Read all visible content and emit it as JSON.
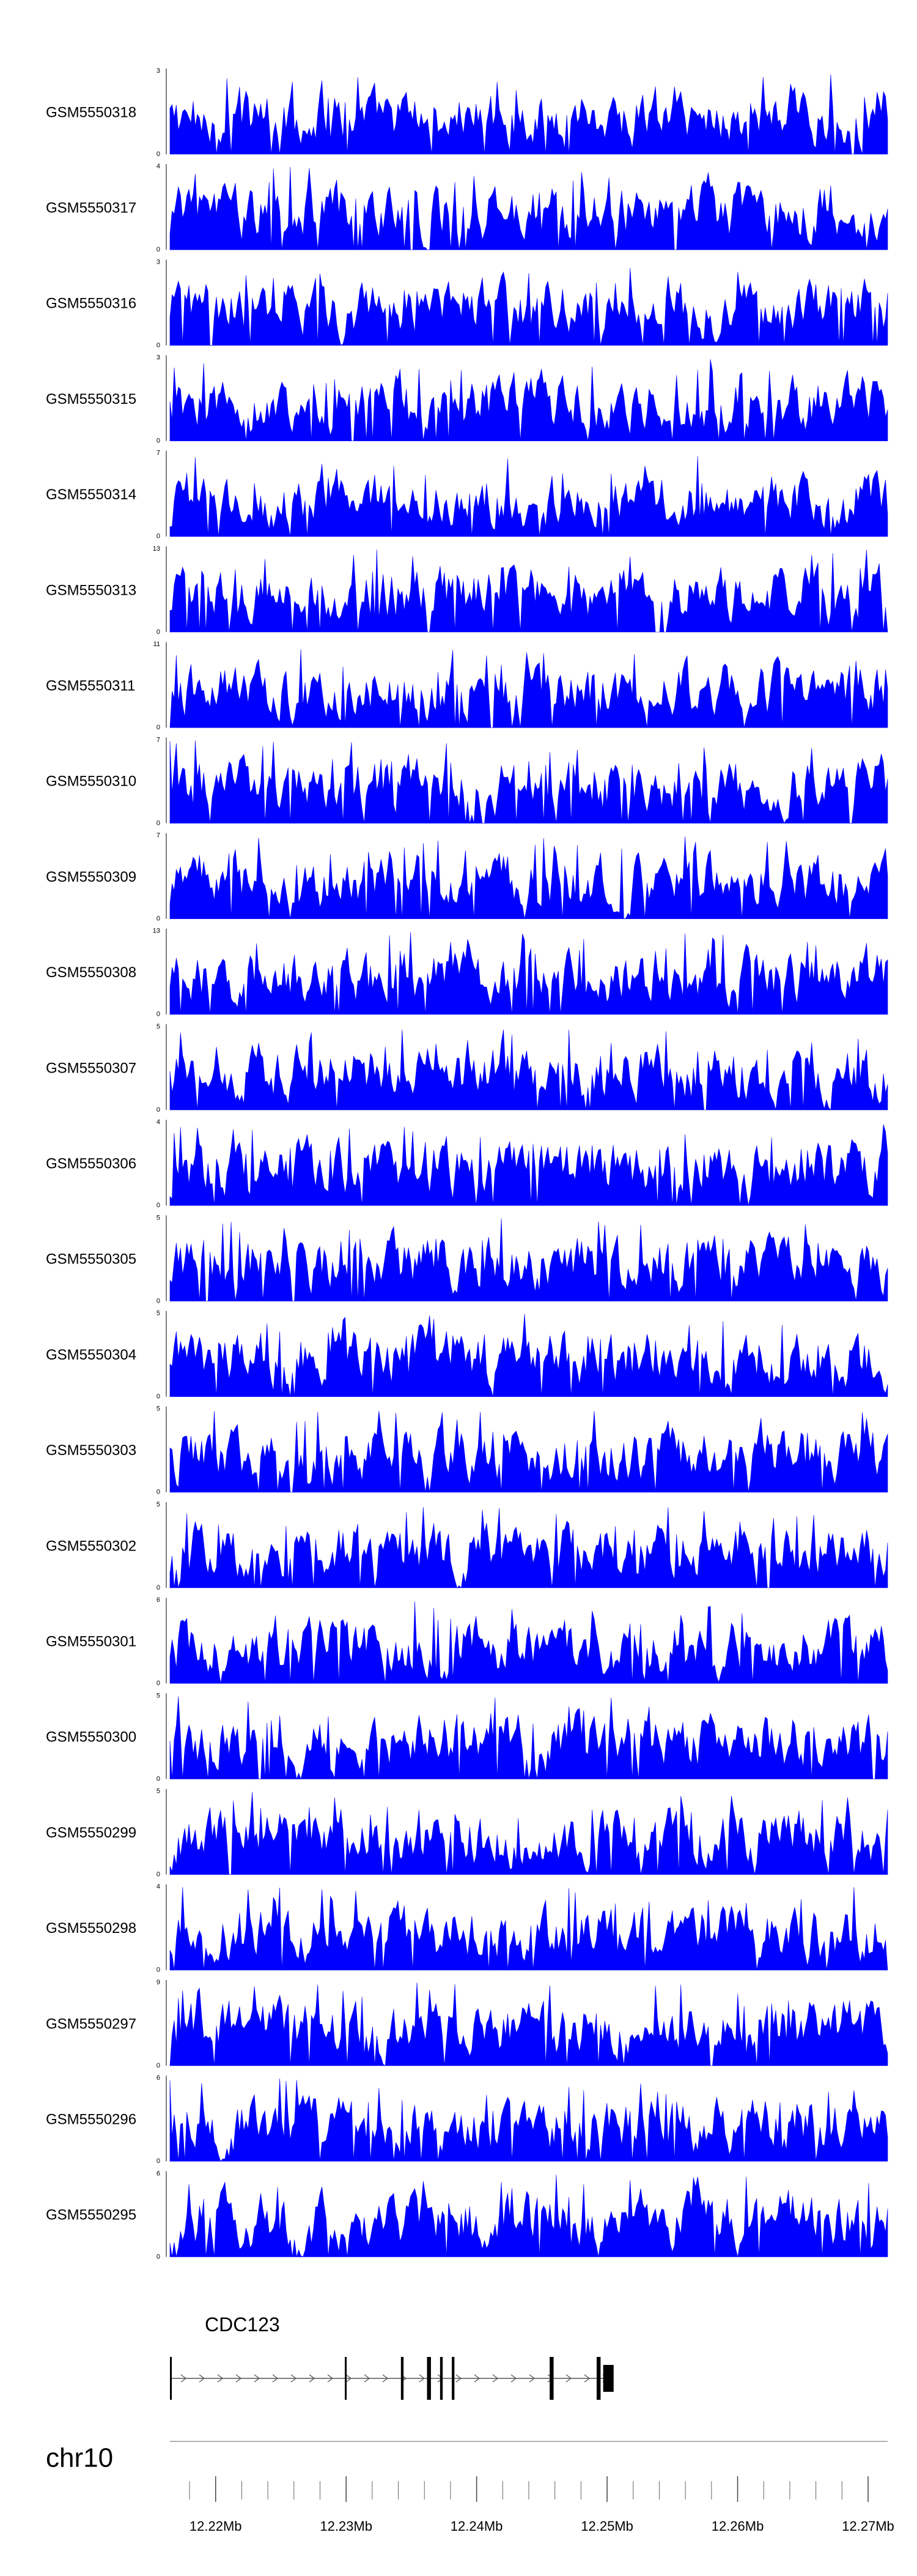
{
  "chart_data": {
    "type": "area",
    "series_color": "#0000ff",
    "chromosome": "chr10",
    "x_unit": "Mb",
    "xlim": [
      12.2165,
      12.2715
    ],
    "x_ticks": [
      {
        "value": 12.22,
        "label": "12.22Mb"
      },
      {
        "value": 12.23,
        "label": "12.23Mb"
      },
      {
        "value": 12.24,
        "label": "12.24Mb"
      },
      {
        "value": 12.25,
        "label": "12.25Mb"
      },
      {
        "value": 12.26,
        "label": "12.26Mb"
      },
      {
        "value": 12.27,
        "label": "12.27Mb"
      }
    ],
    "tracks": [
      {
        "name": "GSM5550318",
        "ymax": 3,
        "ymax_label": "3",
        "ymin_label": "0"
      },
      {
        "name": "GSM5550317",
        "ymax": 4,
        "ymax_label": "4",
        "ymin_label": "0"
      },
      {
        "name": "GSM5550316",
        "ymax": 3,
        "ymax_label": "3",
        "ymin_label": "0"
      },
      {
        "name": "GSM5550315",
        "ymax": 3,
        "ymax_label": "3",
        "ymin_label": "0"
      },
      {
        "name": "GSM5550314",
        "ymax": 7,
        "ymax_label": "7",
        "ymin_label": "0"
      },
      {
        "name": "GSM5550313",
        "ymax": 13,
        "ymax_label": "13",
        "ymin_label": "0"
      },
      {
        "name": "GSM5550311",
        "ymax": 11,
        "ymax_label": "11",
        "ymin_label": "0"
      },
      {
        "name": "GSM5550310",
        "ymax": 7,
        "ymax_label": "7",
        "ymin_label": "0"
      },
      {
        "name": "GSM5550309",
        "ymax": 7,
        "ymax_label": "7",
        "ymin_label": "0"
      },
      {
        "name": "GSM5550308",
        "ymax": 13,
        "ymax_label": "13",
        "ymin_label": "0"
      },
      {
        "name": "GSM5550307",
        "ymax": 5,
        "ymax_label": "5",
        "ymin_label": "0"
      },
      {
        "name": "GSM5550306",
        "ymax": 4,
        "ymax_label": "4",
        "ymin_label": "0"
      },
      {
        "name": "GSM5550305",
        "ymax": 5,
        "ymax_label": "5",
        "ymin_label": "0"
      },
      {
        "name": "GSM5550304",
        "ymax": 5,
        "ymax_label": "5",
        "ymin_label": "0"
      },
      {
        "name": "GSM5550303",
        "ymax": 5,
        "ymax_label": "5",
        "ymin_label": "0"
      },
      {
        "name": "GSM5550302",
        "ymax": 5,
        "ymax_label": "5",
        "ymin_label": "0"
      },
      {
        "name": "GSM5550301",
        "ymax": 6,
        "ymax_label": "6",
        "ymin_label": "0"
      },
      {
        "name": "GSM5550300",
        "ymax": 5,
        "ymax_label": "5",
        "ymin_label": "0"
      },
      {
        "name": "GSM5550299",
        "ymax": 5,
        "ymax_label": "5",
        "ymin_label": "0"
      },
      {
        "name": "GSM5550298",
        "ymax": 4,
        "ymax_label": "4",
        "ymin_label": "0"
      },
      {
        "name": "GSM5550297",
        "ymax": 9,
        "ymax_label": "9",
        "ymin_label": "0"
      },
      {
        "name": "GSM5550296",
        "ymax": 6,
        "ymax_label": "6",
        "ymin_label": "0"
      },
      {
        "name": "GSM5550295",
        "ymax": 6,
        "ymax_label": "6",
        "ymin_label": "0"
      }
    ],
    "gene": {
      "name": "CDC123",
      "strand": "+",
      "start": 12.2165,
      "end": 12.2505,
      "exons": [
        {
          "start": 12.2165,
          "end": 12.2166
        },
        {
          "start": 12.2299,
          "end": 12.23
        },
        {
          "start": 12.2342,
          "end": 12.2344
        },
        {
          "start": 12.2362,
          "end": 12.2365
        },
        {
          "start": 12.2372,
          "end": 12.2374
        },
        {
          "start": 12.2381,
          "end": 12.2383
        },
        {
          "start": 12.2456,
          "end": 12.2459
        },
        {
          "start": 12.2492,
          "end": 12.2495
        },
        {
          "start": 12.2497,
          "end": 12.2505
        }
      ]
    }
  }
}
